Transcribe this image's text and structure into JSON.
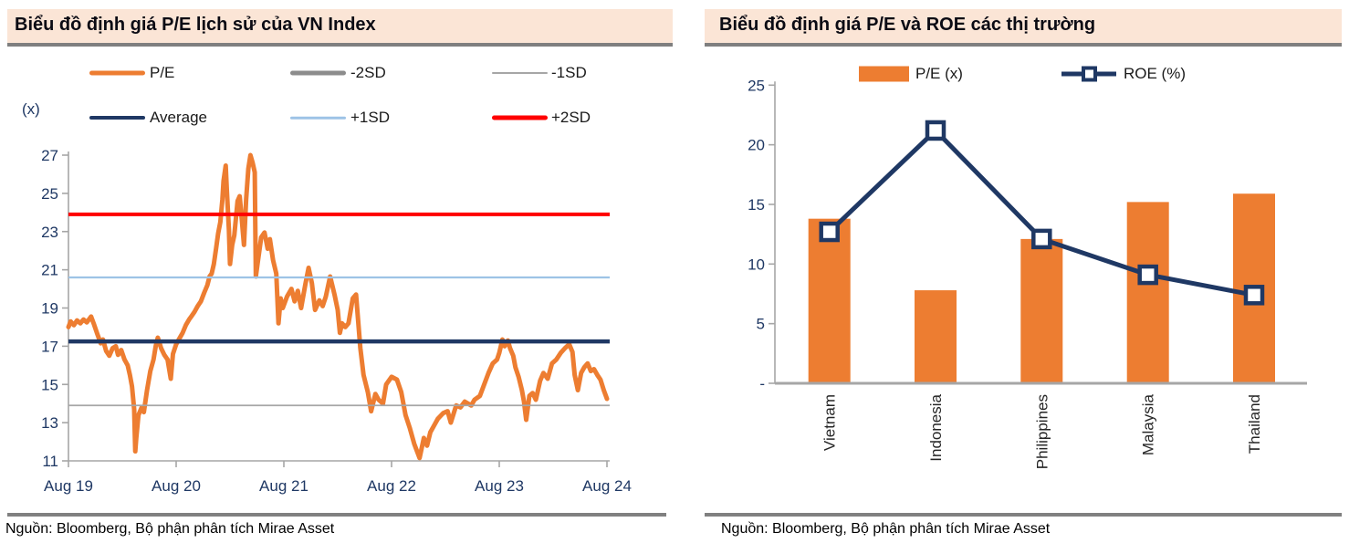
{
  "colors": {
    "orange": "#ED7D31",
    "navy": "#1F3864",
    "red": "#FF0000",
    "light_blue": "#9DC3E6",
    "gray_thick": "#8C8C8C",
    "gray_thin": "#A6A6A6",
    "axis_line": "#A6A6A6",
    "axis_label": "#1F3864",
    "title_bg": "#FBE5D6",
    "title_underline": "#7F7F7F",
    "category_label": "#262626"
  },
  "left_panel": {
    "title": "Biểu đồ định giá P/E lịch sử của VN Index",
    "unit_label": "(x)",
    "source": "Nguồn: Bloomberg, Bộ phận phân tích Mirae Asset"
  },
  "right_panel": {
    "title": "Biểu đồ định giá P/E và ROE các thị trường",
    "source": "Nguồn: Bloomberg, Bộ phận phân tích Mirae Asset"
  },
  "chart_data": [
    {
      "type": "line",
      "title": "Biểu đồ định giá P/E lịch sử của VN Index",
      "unit": "(x)",
      "x_tick_labels": [
        "Aug 19",
        "Aug 20",
        "Aug 21",
        "Aug 22",
        "Aug 23",
        "Aug 24"
      ],
      "y_ticks": [
        11,
        13,
        15,
        17,
        19,
        21,
        23,
        25,
        27
      ],
      "ylim": [
        11,
        27
      ],
      "grid": false,
      "legend_rows": [
        [
          "P/E",
          "-2SD",
          "-1SD"
        ],
        [
          "Average",
          "+1SD",
          "+2SD"
        ]
      ],
      "reference_lines": [
        {
          "name": "Average",
          "value": 17.25
        },
        {
          "name": "+1SD",
          "value": 20.6
        },
        {
          "name": "+2SD",
          "value": 23.9
        },
        {
          "name": "-1SD",
          "value": 13.9
        },
        {
          "name": "-2SD",
          "value": 10.55
        }
      ],
      "series": [
        {
          "name": "P/E",
          "x_unit": "years_since_Aug_2019",
          "points": [
            [
              0.0,
              18.0
            ],
            [
              0.02,
              18.3
            ],
            [
              0.05,
              18.1
            ],
            [
              0.08,
              18.35
            ],
            [
              0.11,
              18.2
            ],
            [
              0.14,
              18.4
            ],
            [
              0.17,
              18.25
            ],
            [
              0.21,
              18.55
            ],
            [
              0.24,
              18.1
            ],
            [
              0.27,
              17.6
            ],
            [
              0.3,
              17.15
            ],
            [
              0.32,
              17.35
            ],
            [
              0.35,
              16.75
            ],
            [
              0.38,
              16.5
            ],
            [
              0.41,
              16.9
            ],
            [
              0.44,
              17.0
            ],
            [
              0.46,
              16.55
            ],
            [
              0.49,
              16.8
            ],
            [
              0.52,
              16.3
            ],
            [
              0.55,
              16.0
            ],
            [
              0.57,
              15.5
            ],
            [
              0.59,
              14.9
            ],
            [
              0.61,
              13.7
            ],
            [
              0.62,
              11.5
            ],
            [
              0.63,
              12.2
            ],
            [
              0.65,
              13.4
            ],
            [
              0.68,
              13.8
            ],
            [
              0.7,
              13.55
            ],
            [
              0.73,
              14.7
            ],
            [
              0.76,
              15.7
            ],
            [
              0.79,
              16.3
            ],
            [
              0.81,
              17.0
            ],
            [
              0.83,
              17.45
            ],
            [
              0.86,
              16.9
            ],
            [
              0.89,
              16.55
            ],
            [
              0.92,
              16.3
            ],
            [
              0.95,
              15.3
            ],
            [
              0.97,
              16.6
            ],
            [
              1.0,
              17.1
            ],
            [
              1.03,
              17.4
            ],
            [
              1.06,
              17.7
            ],
            [
              1.09,
              18.1
            ],
            [
              1.12,
              18.4
            ],
            [
              1.14,
              18.55
            ],
            [
              1.17,
              18.8
            ],
            [
              1.2,
              19.1
            ],
            [
              1.23,
              19.35
            ],
            [
              1.26,
              19.8
            ],
            [
              1.29,
              20.2
            ],
            [
              1.31,
              20.65
            ],
            [
              1.33,
              20.8
            ],
            [
              1.35,
              21.3
            ],
            [
              1.37,
              22.1
            ],
            [
              1.39,
              22.9
            ],
            [
              1.41,
              23.5
            ],
            [
              1.43,
              24.7
            ],
            [
              1.44,
              25.65
            ],
            [
              1.46,
              26.45
            ],
            [
              1.47,
              25.2
            ],
            [
              1.49,
              23.1
            ],
            [
              1.5,
              21.3
            ],
            [
              1.52,
              22.3
            ],
            [
              1.54,
              22.8
            ],
            [
              1.57,
              24.6
            ],
            [
              1.59,
              24.85
            ],
            [
              1.61,
              23.6
            ],
            [
              1.63,
              22.3
            ],
            [
              1.65,
              24.7
            ],
            [
              1.67,
              26.3
            ],
            [
              1.69,
              27.0
            ],
            [
              1.71,
              26.6
            ],
            [
              1.73,
              26.1
            ],
            [
              1.74,
              20.65
            ],
            [
              1.76,
              21.5
            ],
            [
              1.79,
              22.7
            ],
            [
              1.82,
              22.95
            ],
            [
              1.85,
              22.1
            ],
            [
              1.87,
              22.6
            ],
            [
              1.9,
              21.5
            ],
            [
              1.93,
              20.8
            ],
            [
              1.95,
              18.2
            ],
            [
              1.97,
              19.5
            ],
            [
              1.99,
              19.0
            ],
            [
              2.03,
              19.6
            ],
            [
              2.07,
              20.0
            ],
            [
              2.1,
              19.35
            ],
            [
              2.13,
              19.9
            ],
            [
              2.16,
              19.0
            ],
            [
              2.2,
              20.25
            ],
            [
              2.23,
              21.1
            ],
            [
              2.26,
              20.3
            ],
            [
              2.29,
              18.9
            ],
            [
              2.33,
              19.4
            ],
            [
              2.36,
              19.1
            ],
            [
              2.39,
              19.6
            ],
            [
              2.43,
              20.65
            ],
            [
              2.47,
              19.7
            ],
            [
              2.5,
              18.9
            ],
            [
              2.52,
              17.7
            ],
            [
              2.54,
              18.2
            ],
            [
              2.57,
              18.0
            ],
            [
              2.6,
              18.2
            ],
            [
              2.64,
              19.5
            ],
            [
              2.67,
              19.7
            ],
            [
              2.71,
              16.9
            ],
            [
              2.74,
              15.5
            ],
            [
              2.78,
              14.6
            ],
            [
              2.81,
              13.6
            ],
            [
              2.85,
              14.5
            ],
            [
              2.88,
              14.2
            ],
            [
              2.92,
              14.0
            ],
            [
              2.95,
              15.0
            ],
            [
              3.0,
              15.4
            ],
            [
              3.05,
              15.25
            ],
            [
              3.09,
              14.6
            ],
            [
              3.13,
              13.4
            ],
            [
              3.17,
              12.7
            ],
            [
              3.21,
              11.9
            ],
            [
              3.26,
              11.15
            ],
            [
              3.3,
              12.2
            ],
            [
              3.33,
              11.8
            ],
            [
              3.36,
              12.5
            ],
            [
              3.4,
              12.9
            ],
            [
              3.43,
              13.2
            ],
            [
              3.48,
              13.5
            ],
            [
              3.52,
              13.6
            ],
            [
              3.55,
              13.0
            ],
            [
              3.6,
              13.9
            ],
            [
              3.64,
              13.8
            ],
            [
              3.68,
              14.1
            ],
            [
              3.74,
              13.9
            ],
            [
              3.77,
              14.2
            ],
            [
              3.82,
              14.4
            ],
            [
              3.86,
              15.0
            ],
            [
              3.9,
              15.6
            ],
            [
              3.94,
              16.1
            ],
            [
              3.98,
              16.3
            ],
            [
              4.0,
              16.65
            ],
            [
              4.03,
              17.35
            ],
            [
              4.05,
              17.0
            ],
            [
              4.08,
              17.3
            ],
            [
              4.1,
              16.9
            ],
            [
              4.13,
              16.5
            ],
            [
              4.15,
              15.9
            ],
            [
              4.18,
              15.4
            ],
            [
              4.21,
              14.7
            ],
            [
              4.23,
              14.1
            ],
            [
              4.25,
              13.15
            ],
            [
              4.28,
              14.4
            ],
            [
              4.31,
              14.55
            ],
            [
              4.34,
              14.2
            ],
            [
              4.38,
              15.2
            ],
            [
              4.41,
              15.6
            ],
            [
              4.45,
              15.3
            ],
            [
              4.49,
              16.1
            ],
            [
              4.53,
              16.3
            ],
            [
              4.57,
              16.65
            ],
            [
              4.61,
              16.9
            ],
            [
              4.65,
              17.1
            ],
            [
              4.68,
              16.7
            ],
            [
              4.7,
              15.5
            ],
            [
              4.73,
              14.7
            ],
            [
              4.76,
              15.6
            ],
            [
              4.79,
              15.9
            ],
            [
              4.82,
              16.1
            ],
            [
              4.85,
              15.7
            ],
            [
              4.88,
              15.8
            ],
            [
              4.91,
              15.5
            ],
            [
              4.94,
              15.25
            ],
            [
              4.97,
              14.7
            ],
            [
              5.0,
              14.25
            ]
          ]
        }
      ],
      "source": "Nguồn: Bloomberg, Bộ phận phân tích Mirae Asset"
    },
    {
      "type": "bar",
      "title": "Biểu đồ định giá P/E và ROE các thị trường",
      "categories": [
        "Vietnam",
        "Indonesia",
        "Philippines",
        "Malaysia",
        "Thailand"
      ],
      "series": [
        {
          "name": "P/E (x)",
          "type": "bar",
          "values": [
            13.8,
            7.8,
            12.1,
            15.2,
            15.9
          ]
        },
        {
          "name": "ROE (%)",
          "type": "line",
          "marker": "hollow-square",
          "values": [
            12.7,
            21.2,
            12.1,
            9.1,
            7.4
          ]
        }
      ],
      "ylim": [
        0,
        25
      ],
      "y_ticks": [
        0,
        5,
        10,
        15,
        20,
        25
      ],
      "y_tick_labels": [
        "-",
        "5",
        "10",
        "15",
        "20",
        "25"
      ],
      "grid": false,
      "legend_position": "top",
      "source": "Nguồn: Bloomberg, Bộ phận phân tích Mirae Asset"
    }
  ]
}
